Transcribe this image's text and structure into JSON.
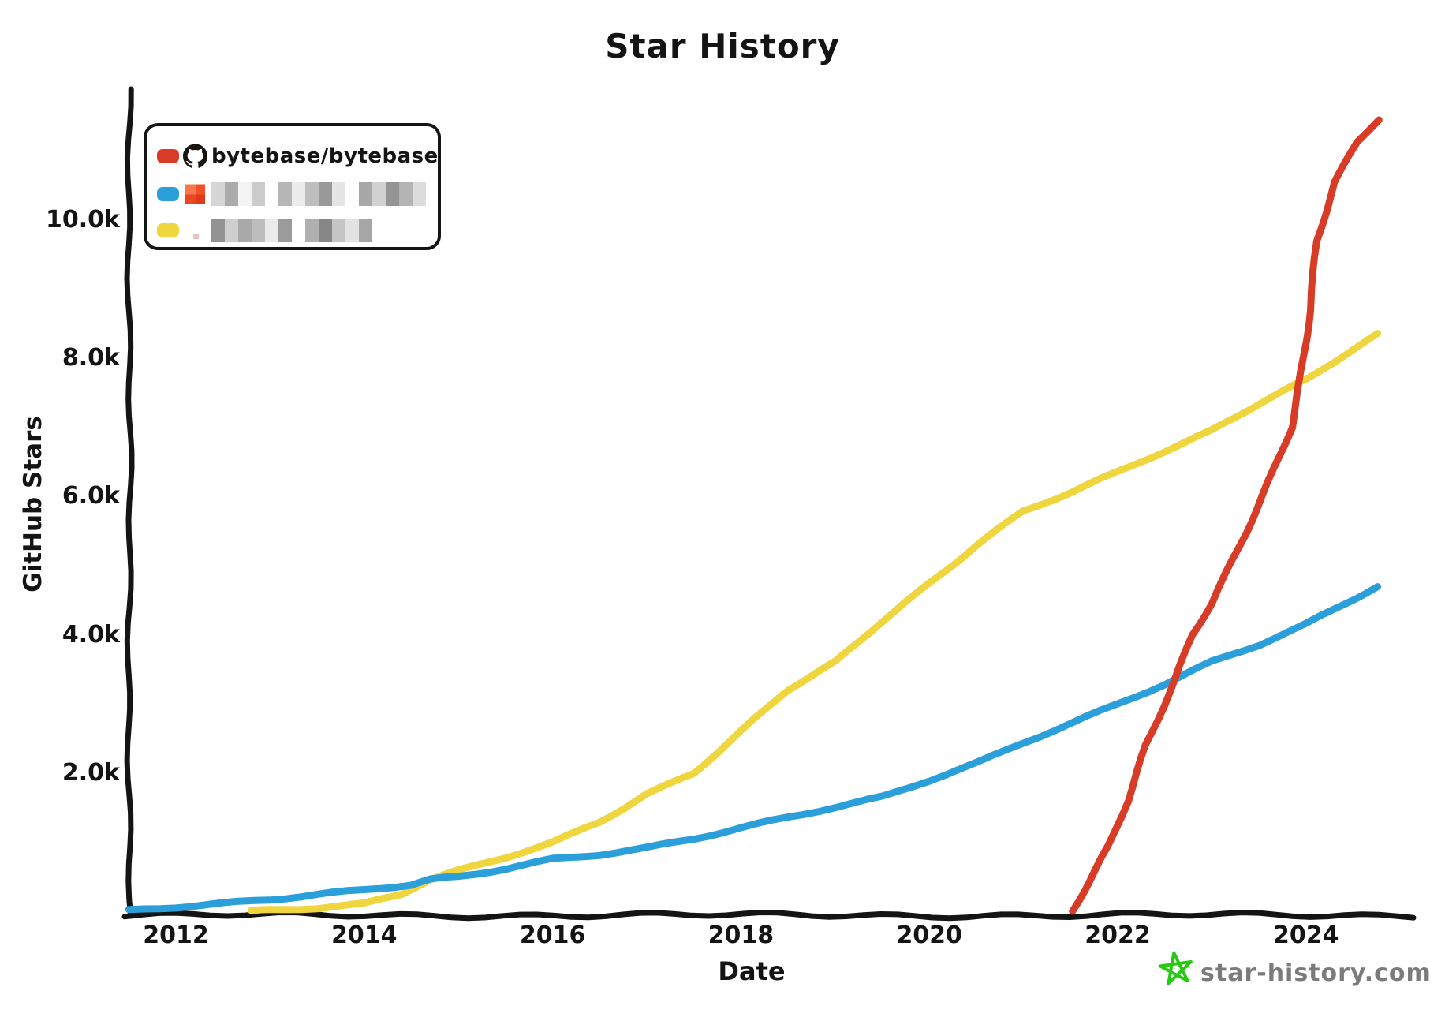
{
  "chart_data": {
    "type": "line",
    "title": "Star History",
    "xlabel": "Date",
    "ylabel": "GitHub Stars",
    "x_ticks": [
      2012,
      2014,
      2016,
      2018,
      2020,
      2022,
      2024
    ],
    "y_ticks": [
      {
        "label": "2.0k",
        "value": 2000
      },
      {
        "label": "4.0k",
        "value": 4000
      },
      {
        "label": "6.0k",
        "value": 6000
      },
      {
        "label": "8.0k",
        "value": 8000
      },
      {
        "label": "10.0k",
        "value": 10000
      }
    ],
    "xlim": [
      2011.5,
      2025.1
    ],
    "ylim": [
      0,
      11900
    ],
    "grid": false,
    "legend_position": "top-left",
    "axis_color": "#141414",
    "series": [
      {
        "name": "bytebase/bytebase",
        "color": "#d83b26",
        "points": [
          [
            2021.52,
            0
          ],
          [
            2021.7,
            450
          ],
          [
            2021.9,
            950
          ],
          [
            2022.1,
            1600
          ],
          [
            2022.3,
            2400
          ],
          [
            2022.61,
            3330
          ],
          [
            2022.8,
            4000
          ],
          [
            2023.0,
            4450
          ],
          [
            2023.3,
            5300
          ],
          [
            2023.53,
            6000
          ],
          [
            2023.84,
            7000
          ],
          [
            2023.93,
            7630
          ],
          [
            2024.05,
            8700
          ],
          [
            2024.12,
            9700
          ],
          [
            2024.31,
            10550
          ],
          [
            2024.54,
            11130
          ],
          [
            2024.76,
            11450
          ]
        ]
      },
      {
        "name": "[redacted]",
        "redacted": true,
        "color": "#2b9fd9",
        "points": [
          [
            2011.5,
            20
          ],
          [
            2012,
            70
          ],
          [
            2012.5,
            120
          ],
          [
            2013,
            170
          ],
          [
            2013.5,
            240
          ],
          [
            2014,
            300
          ],
          [
            2014.5,
            380
          ],
          [
            2014.7,
            450
          ],
          [
            2015,
            500
          ],
          [
            2015.5,
            620
          ],
          [
            2016,
            760
          ],
          [
            2016.5,
            830
          ],
          [
            2017,
            920
          ],
          [
            2017.5,
            1050
          ],
          [
            2018,
            1200
          ],
          [
            2018.5,
            1350
          ],
          [
            2019,
            1500
          ],
          [
            2019.5,
            1650
          ],
          [
            2020,
            1900
          ],
          [
            2020.5,
            2150
          ],
          [
            2021,
            2450
          ],
          [
            2021.5,
            2720
          ],
          [
            2022,
            3000
          ],
          [
            2022.5,
            3280
          ],
          [
            2023,
            3600
          ],
          [
            2023.5,
            3850
          ],
          [
            2024,
            4150
          ],
          [
            2024.4,
            4450
          ],
          [
            2024.76,
            4700
          ]
        ]
      },
      {
        "name": "[redacted]",
        "redacted": true,
        "color": "#efd53e",
        "points": [
          [
            2012.8,
            10
          ],
          [
            2013,
            20
          ],
          [
            2013.5,
            50
          ],
          [
            2014,
            100
          ],
          [
            2014.4,
            250
          ],
          [
            2014.7,
            450
          ],
          [
            2015,
            580
          ],
          [
            2015.5,
            780
          ],
          [
            2016,
            1000
          ],
          [
            2016.5,
            1300
          ],
          [
            2017,
            1700
          ],
          [
            2017.5,
            2000
          ],
          [
            2018,
            2600
          ],
          [
            2018.5,
            3200
          ],
          [
            2019,
            3600
          ],
          [
            2019.5,
            4200
          ],
          [
            2020,
            4750
          ],
          [
            2020.5,
            5300
          ],
          [
            2021,
            5800
          ],
          [
            2021.5,
            6050
          ],
          [
            2022,
            6350
          ],
          [
            2022.5,
            6650
          ],
          [
            2023,
            6950
          ],
          [
            2023.5,
            7350
          ],
          [
            2024,
            7700
          ],
          [
            2024.4,
            8050
          ],
          [
            2024.76,
            8350
          ]
        ]
      }
    ]
  },
  "legend": {
    "items": [
      {
        "swatch_color": "#d83b26",
        "icon": "github",
        "label": "bytebase/bytebase",
        "redacted": false,
        "blur_blocks": []
      },
      {
        "swatch_color": "#2b9fd9",
        "icon": "avatar-orange",
        "label": "",
        "redacted": true,
        "blur_blocks": [
          "#c8c8c8",
          "#8f8f8f",
          "#efefef",
          "#b9b9b9",
          "#ffffff",
          "#9e9e9e",
          "#e6e6e6",
          "#a8a8a8",
          "#777777",
          "#dcdcdc",
          "#ffffff",
          "#8a8a8a",
          "#c2c2c2",
          "#707070",
          "#9b9b9b",
          "#d0d0d0"
        ]
      },
      {
        "swatch_color": "#efd53e",
        "icon": "avatar-pink",
        "label": "",
        "redacted": true,
        "blur_blocks": [
          "#6f6f6f",
          "#bdbdbd",
          "#8c8c8c",
          "#a5a5a5",
          "#e3e3e3",
          "#7a7a7a",
          "#ffffff",
          "#969696",
          "#5f5f5f",
          "#b1b1b1",
          "#d9d9d9",
          "#888888"
        ]
      }
    ]
  },
  "watermark": {
    "text": "star-history.com",
    "star_color": "#25cb10",
    "text_color": "#7b7b7b"
  },
  "icon_colors": {
    "github": "#18140f",
    "avatar_orange_grid": [
      "#f8764d",
      "#f1502b",
      "#ee4623",
      "#e03a1a"
    ],
    "avatar_pink": "#f6e6e6"
  }
}
